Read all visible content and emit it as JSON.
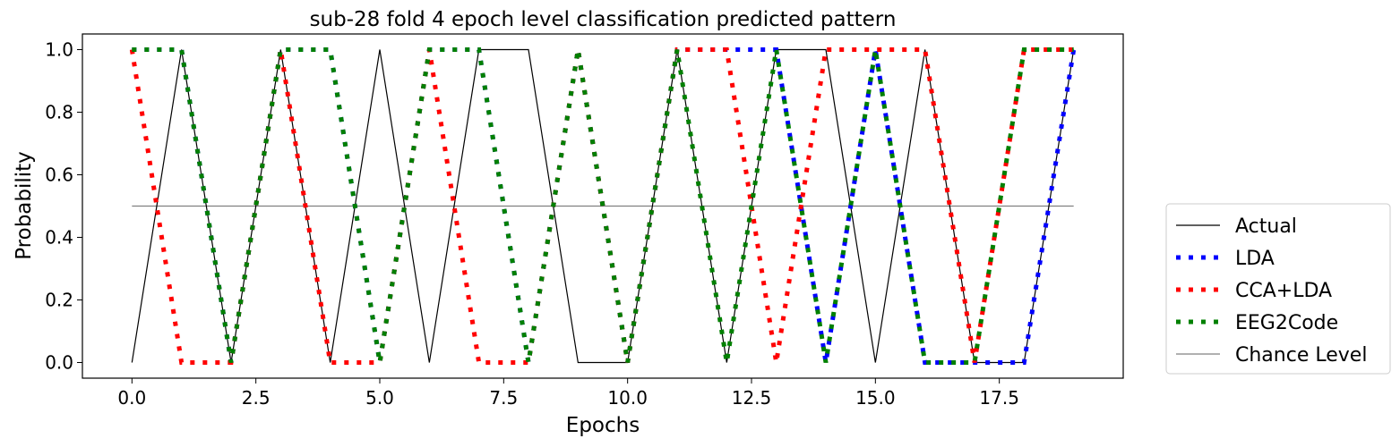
{
  "chart_data": {
    "type": "line",
    "title": "sub-28 fold 4 epoch level classification predicted pattern",
    "xlabel": "Epochs",
    "ylabel": "Probability",
    "xlim": [
      -1,
      20
    ],
    "ylim": [
      -0.05,
      1.05
    ],
    "xticks": [
      0.0,
      2.5,
      5.0,
      7.5,
      10.0,
      12.5,
      15.0,
      17.5
    ],
    "xtick_labels": [
      "0.0",
      "2.5",
      "5.0",
      "7.5",
      "10.0",
      "12.5",
      "15.0",
      "17.5"
    ],
    "yticks": [
      0.0,
      0.2,
      0.4,
      0.6,
      0.8,
      1.0
    ],
    "ytick_labels": [
      "0.0",
      "0.2",
      "0.4",
      "0.6",
      "0.8",
      "1.0"
    ],
    "legend_position": "outside-right-bottom",
    "x": [
      0,
      1,
      2,
      3,
      4,
      5,
      6,
      7,
      8,
      9,
      10,
      11,
      12,
      13,
      14,
      15,
      16,
      17,
      18,
      19
    ],
    "series": [
      {
        "name": "Actual",
        "style": "solid-thin",
        "color": "#000000",
        "values": [
          0,
          1,
          0,
          1,
          0,
          1,
          0,
          1,
          1,
          0,
          0,
          1,
          0,
          1,
          1,
          0,
          1,
          0,
          0,
          1
        ]
      },
      {
        "name": "LDA",
        "style": "dotted",
        "color": "#0000ff",
        "values": [
          1,
          1,
          0,
          1,
          1,
          0,
          1,
          1,
          0,
          1,
          0,
          1,
          1,
          1,
          0,
          1,
          0,
          0,
          0,
          1
        ]
      },
      {
        "name": "CCA+LDA",
        "style": "dotted",
        "color": "#ff0000",
        "values": [
          1,
          0,
          0,
          1,
          0,
          0,
          1,
          0,
          0,
          1,
          0,
          1,
          1,
          0,
          1,
          1,
          1,
          0,
          1,
          1
        ]
      },
      {
        "name": "EEG2Code",
        "style": "dotted",
        "color": "#008000",
        "values": [
          1,
          1,
          0,
          1,
          1,
          0,
          1,
          1,
          0,
          1,
          0,
          1,
          0,
          1,
          0,
          1,
          0,
          0,
          1,
          1
        ]
      },
      {
        "name": "Chance Level",
        "style": "solid-thin",
        "color": "#808080",
        "values": [
          0.5,
          0.5,
          0.5,
          0.5,
          0.5,
          0.5,
          0.5,
          0.5,
          0.5,
          0.5,
          0.5,
          0.5,
          0.5,
          0.5,
          0.5,
          0.5,
          0.5,
          0.5,
          0.5,
          0.5
        ]
      }
    ]
  }
}
